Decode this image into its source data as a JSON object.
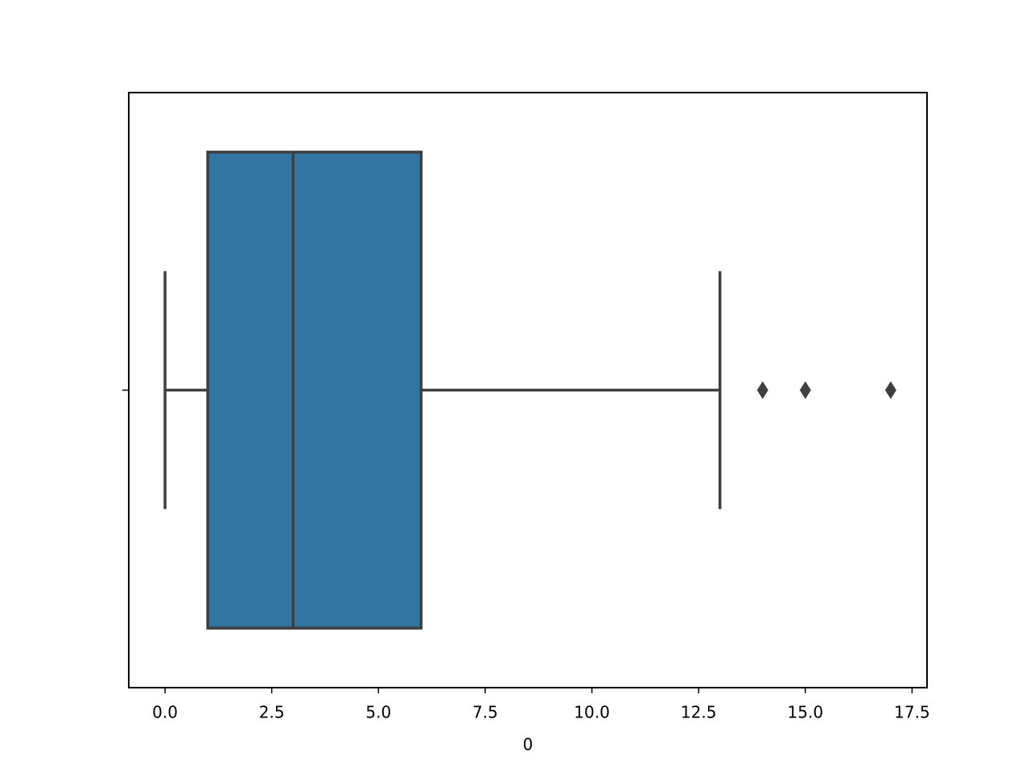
{
  "chart_data": {
    "type": "boxplot",
    "orientation": "horizontal",
    "x_label": "0",
    "categories": [
      null
    ],
    "boxes": [
      {
        "min": 0,
        "q1": 1,
        "median": 3,
        "q3": 6,
        "max": 13,
        "outliers": [
          14,
          15,
          17
        ]
      }
    ],
    "color": "#3274a1",
    "xlim": [
      -0.85,
      17.85
    ],
    "xticks": [
      {
        "value": 0,
        "label": "0.0"
      },
      2.5,
      {
        "value": 5,
        "label": "5.0"
      },
      7.5,
      {
        "value": 10,
        "label": "10.0"
      },
      12.5,
      {
        "value": 15,
        "label": "15.0"
      },
      17.5
    ]
  }
}
